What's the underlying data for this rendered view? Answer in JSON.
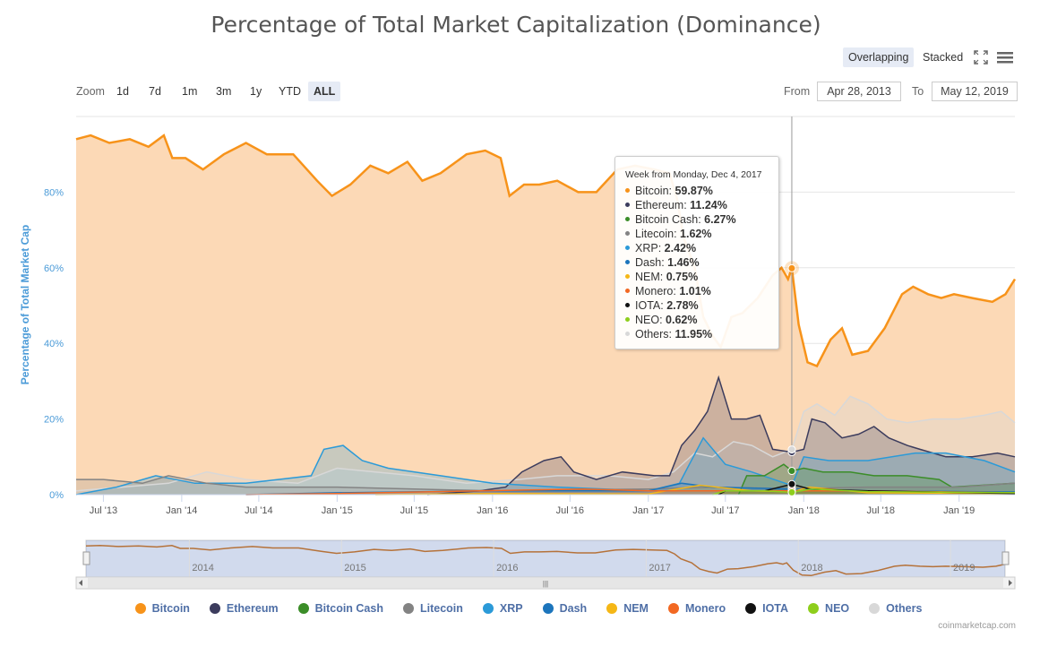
{
  "title": "Percentage of Total Market Capitalization (Dominance)",
  "toolbar": {
    "overlapping": "Overlapping",
    "stacked": "Stacked"
  },
  "zoom": {
    "label": "Zoom",
    "buttons": [
      "1d",
      "7d",
      "1m",
      "3m",
      "1y",
      "YTD",
      "ALL"
    ],
    "selected": "ALL"
  },
  "range": {
    "from_label": "From",
    "from": "Apr 28, 2013",
    "to_label": "To",
    "to": "May 12, 2019"
  },
  "tooltip": {
    "header": "Week from Monday, Dec 4, 2017",
    "rows": [
      {
        "name": "Bitcoin",
        "value": "59.87%",
        "color": "#f7931a"
      },
      {
        "name": "Ethereum",
        "value": "11.24%",
        "color": "#3c3c5d"
      },
      {
        "name": "Bitcoin Cash",
        "value": "6.27%",
        "color": "#3b8d28"
      },
      {
        "name": "Litecoin",
        "value": "1.62%",
        "color": "#838383"
      },
      {
        "name": "XRP",
        "value": "2.42%",
        "color": "#2b9ad8"
      },
      {
        "name": "Dash",
        "value": "1.46%",
        "color": "#1c75bc"
      },
      {
        "name": "NEM",
        "value": "0.75%",
        "color": "#f5b716"
      },
      {
        "name": "Monero",
        "value": "1.01%",
        "color": "#f26822"
      },
      {
        "name": "IOTA",
        "value": "2.78%",
        "color": "#111111"
      },
      {
        "name": "NEO",
        "value": "0.62%",
        "color": "#8ece1c"
      },
      {
        "name": "Others",
        "value": "11.95%",
        "color": "#d8d8d8"
      }
    ]
  },
  "navigator": {
    "years": [
      "2014",
      "2015",
      "2016",
      "2017",
      "2018",
      "2019"
    ]
  },
  "credit": "coinmarketcap.com",
  "chart_data": {
    "type": "area",
    "title": "Percentage of Total Market Capitalization (Dominance)",
    "ylabel": "Percentage of Total Market Cap",
    "ylim": [
      0,
      100
    ],
    "y_ticks": [
      "0%",
      "20%",
      "40%",
      "60%",
      "80%"
    ],
    "x_ticks": [
      "Jul '13",
      "Jan '14",
      "Jul '14",
      "Jan '15",
      "Jul '15",
      "Jan '16",
      "Jul '16",
      "Jan '17",
      "Jul '17",
      "Jan '18",
      "Jul '18",
      "Jan '19"
    ],
    "x_range": [
      "2013-04-28",
      "2019-05-12"
    ],
    "legend_position": "bottom",
    "series": [
      {
        "name": "Bitcoin",
        "color": "#f7931a",
        "fill": "#fcd9b6",
        "points": [
          [
            "2013-04-28",
            94
          ],
          [
            "2013-06-01",
            95
          ],
          [
            "2013-07-15",
            93
          ],
          [
            "2013-09-01",
            94
          ],
          [
            "2013-10-15",
            92
          ],
          [
            "2013-11-20",
            95
          ],
          [
            "2013-12-10",
            89
          ],
          [
            "2014-01-10",
            89
          ],
          [
            "2014-02-20",
            86
          ],
          [
            "2014-04-10",
            90
          ],
          [
            "2014-06-01",
            93
          ],
          [
            "2014-07-20",
            90
          ],
          [
            "2014-09-20",
            90
          ],
          [
            "2014-11-15",
            83
          ],
          [
            "2014-12-20",
            79
          ],
          [
            "2015-02-01",
            82
          ],
          [
            "2015-03-20",
            87
          ],
          [
            "2015-05-01",
            85
          ],
          [
            "2015-06-15",
            88
          ],
          [
            "2015-07-20",
            83
          ],
          [
            "2015-09-01",
            85
          ],
          [
            "2015-11-01",
            90
          ],
          [
            "2015-12-15",
            91
          ],
          [
            "2016-01-20",
            89
          ],
          [
            "2016-02-10",
            79
          ],
          [
            "2016-03-15",
            82
          ],
          [
            "2016-04-20",
            82
          ],
          [
            "2016-06-01",
            83
          ],
          [
            "2016-07-20",
            80
          ],
          [
            "2016-09-01",
            80
          ],
          [
            "2016-10-20",
            86
          ],
          [
            "2016-12-01",
            87
          ],
          [
            "2017-01-15",
            86
          ],
          [
            "2017-02-20",
            85
          ],
          [
            "2017-03-10",
            78
          ],
          [
            "2017-03-25",
            68
          ],
          [
            "2017-04-20",
            60
          ],
          [
            "2017-05-10",
            47
          ],
          [
            "2017-06-01",
            42
          ],
          [
            "2017-06-20",
            39
          ],
          [
            "2017-07-15",
            47
          ],
          [
            "2017-08-10",
            48
          ],
          [
            "2017-09-15",
            52
          ],
          [
            "2017-10-20",
            58
          ],
          [
            "2017-11-10",
            60
          ],
          [
            "2017-11-25",
            57
          ],
          [
            "2017-12-04",
            59.87
          ],
          [
            "2017-12-20",
            45
          ],
          [
            "2018-01-10",
            35
          ],
          [
            "2018-02-01",
            34
          ],
          [
            "2018-03-05",
            41
          ],
          [
            "2018-04-01",
            44
          ],
          [
            "2018-04-25",
            37
          ],
          [
            "2018-06-01",
            38
          ],
          [
            "2018-07-10",
            44
          ],
          [
            "2018-08-20",
            53
          ],
          [
            "2018-09-15",
            55
          ],
          [
            "2018-10-20",
            53
          ],
          [
            "2018-11-20",
            52
          ],
          [
            "2018-12-20",
            53
          ],
          [
            "2019-02-01",
            52
          ],
          [
            "2019-03-20",
            51
          ],
          [
            "2019-04-20",
            53
          ],
          [
            "2019-05-12",
            57
          ]
        ]
      },
      {
        "name": "Ethereum",
        "color": "#3c3c5d",
        "fill": "rgba(60,60,93,0.25)",
        "points": [
          [
            "2015-08-01",
            0
          ],
          [
            "2015-12-01",
            1
          ],
          [
            "2016-02-01",
            2
          ],
          [
            "2016-03-10",
            6
          ],
          [
            "2016-05-01",
            9
          ],
          [
            "2016-06-10",
            10
          ],
          [
            "2016-07-10",
            6
          ],
          [
            "2016-09-01",
            4
          ],
          [
            "2016-11-01",
            6
          ],
          [
            "2017-01-15",
            5
          ],
          [
            "2017-02-20",
            5
          ],
          [
            "2017-03-20",
            13
          ],
          [
            "2017-04-20",
            17
          ],
          [
            "2017-05-20",
            22
          ],
          [
            "2017-06-15",
            31
          ],
          [
            "2017-07-15",
            20
          ],
          [
            "2017-08-20",
            20
          ],
          [
            "2017-09-20",
            21
          ],
          [
            "2017-10-20",
            12
          ],
          [
            "2017-12-04",
            11.24
          ],
          [
            "2018-01-01",
            12
          ],
          [
            "2018-01-20",
            20
          ],
          [
            "2018-02-20",
            19
          ],
          [
            "2018-04-01",
            15
          ],
          [
            "2018-05-10",
            16
          ],
          [
            "2018-06-15",
            18
          ],
          [
            "2018-07-20",
            15
          ],
          [
            "2018-09-01",
            13
          ],
          [
            "2018-10-01",
            12
          ],
          [
            "2018-12-01",
            10
          ],
          [
            "2019-02-01",
            10
          ],
          [
            "2019-04-01",
            11
          ],
          [
            "2019-05-12",
            10
          ]
        ]
      },
      {
        "name": "Bitcoin Cash",
        "color": "#3b8d28",
        "fill": "rgba(59,141,40,0.25)",
        "points": [
          [
            "2017-08-01",
            0
          ],
          [
            "2017-08-20",
            5
          ],
          [
            "2017-10-01",
            5
          ],
          [
            "2017-11-15",
            8
          ],
          [
            "2017-12-04",
            6.27
          ],
          [
            "2018-01-01",
            7
          ],
          [
            "2018-02-15",
            6
          ],
          [
            "2018-04-20",
            6
          ],
          [
            "2018-06-15",
            5
          ],
          [
            "2018-09-01",
            5
          ],
          [
            "2018-11-15",
            4
          ],
          [
            "2018-12-15",
            2
          ],
          [
            "2019-05-12",
            3
          ]
        ]
      },
      {
        "name": "Litecoin",
        "color": "#838383",
        "fill": "rgba(131,131,131,0.2)",
        "points": [
          [
            "2013-04-28",
            4
          ],
          [
            "2013-07-01",
            4
          ],
          [
            "2013-10-01",
            3
          ],
          [
            "2013-12-01",
            5
          ],
          [
            "2014-03-01",
            3
          ],
          [
            "2014-06-01",
            2
          ],
          [
            "2015-01-01",
            2
          ],
          [
            "2015-07-01",
            1.5
          ],
          [
            "2016-01-01",
            1
          ],
          [
            "2017-01-01",
            1.5
          ],
          [
            "2017-06-01",
            2
          ],
          [
            "2017-12-04",
            1.62
          ],
          [
            "2018-06-01",
            2
          ],
          [
            "2019-01-01",
            2
          ],
          [
            "2019-05-12",
            3
          ]
        ]
      },
      {
        "name": "XRP",
        "color": "#2b9ad8",
        "fill": "rgba(43,154,216,0.25)",
        "points": [
          [
            "2013-04-28",
            0
          ],
          [
            "2013-08-01",
            2
          ],
          [
            "2013-11-01",
            5
          ],
          [
            "2014-02-01",
            3
          ],
          [
            "2014-06-01",
            3
          ],
          [
            "2014-11-01",
            5
          ],
          [
            "2014-12-01",
            12
          ],
          [
            "2015-01-15",
            13
          ],
          [
            "2015-03-01",
            9
          ],
          [
            "2015-05-01",
            7
          ],
          [
            "2015-09-01",
            5
          ],
          [
            "2016-01-01",
            3
          ],
          [
            "2016-06-01",
            2
          ],
          [
            "2017-01-01",
            1
          ],
          [
            "2017-03-15",
            3
          ],
          [
            "2017-05-10",
            15
          ],
          [
            "2017-07-01",
            8
          ],
          [
            "2017-09-01",
            6
          ],
          [
            "2017-12-04",
            2.42
          ],
          [
            "2018-01-01",
            10
          ],
          [
            "2018-03-01",
            9
          ],
          [
            "2018-06-01",
            9
          ],
          [
            "2018-09-20",
            11
          ],
          [
            "2018-12-01",
            11
          ],
          [
            "2019-03-01",
            9
          ],
          [
            "2019-05-12",
            6
          ]
        ]
      },
      {
        "name": "Dash",
        "color": "#1c75bc",
        "fill": "rgba(28,117,188,0.2)",
        "points": [
          [
            "2014-06-01",
            0
          ],
          [
            "2015-01-01",
            0.5
          ],
          [
            "2016-01-01",
            1
          ],
          [
            "2017-01-01",
            1
          ],
          [
            "2017-03-20",
            3
          ],
          [
            "2017-06-01",
            2
          ],
          [
            "2017-12-04",
            1.46
          ],
          [
            "2018-06-01",
            1
          ],
          [
            "2019-05-12",
            0.7
          ]
        ]
      },
      {
        "name": "NEM",
        "color": "#f5b716",
        "fill": "rgba(245,183,22,0.2)",
        "points": [
          [
            "2015-04-01",
            0
          ],
          [
            "2016-01-01",
            0.3
          ],
          [
            "2017-01-01",
            0.2
          ],
          [
            "2017-05-01",
            2.5
          ],
          [
            "2017-09-01",
            1
          ],
          [
            "2017-12-04",
            0.75
          ],
          [
            "2018-01-15",
            2
          ],
          [
            "2018-06-01",
            0.5
          ],
          [
            "2019-05-12",
            0.3
          ]
        ]
      },
      {
        "name": "Monero",
        "color": "#f26822",
        "fill": "rgba(242,104,34,0.2)",
        "points": [
          [
            "2014-06-01",
            0
          ],
          [
            "2015-01-01",
            0.3
          ],
          [
            "2016-08-01",
            1.5
          ],
          [
            "2017-01-01",
            1
          ],
          [
            "2017-06-01",
            1
          ],
          [
            "2017-12-04",
            1.01
          ],
          [
            "2018-06-01",
            1
          ],
          [
            "2019-05-12",
            0.5
          ]
        ]
      },
      {
        "name": "IOTA",
        "color": "#111111",
        "fill": "rgba(17,17,17,0.15)",
        "points": [
          [
            "2017-06-15",
            0
          ],
          [
            "2017-07-01",
            1
          ],
          [
            "2017-10-01",
            1
          ],
          [
            "2017-12-04",
            2.78
          ],
          [
            "2018-01-15",
            1.5
          ],
          [
            "2018-06-01",
            1
          ],
          [
            "2019-05-12",
            0.3
          ]
        ]
      },
      {
        "name": "NEO",
        "color": "#8ece1c",
        "fill": "rgba(142,206,28,0.2)",
        "points": [
          [
            "2017-06-01",
            0
          ],
          [
            "2017-07-01",
            1
          ],
          [
            "2017-10-01",
            1
          ],
          [
            "2017-12-04",
            0.62
          ],
          [
            "2018-01-20",
            1.5
          ],
          [
            "2018-06-01",
            0.8
          ],
          [
            "2019-05-12",
            0.5
          ]
        ]
      },
      {
        "name": "Others",
        "color": "#d8d8d8",
        "fill": "rgba(216,216,216,0.35)",
        "points": [
          [
            "2013-04-28",
            1
          ],
          [
            "2013-12-01",
            3
          ],
          [
            "2014-03-01",
            6
          ],
          [
            "2014-06-01",
            4
          ],
          [
            "2014-10-01",
            3
          ],
          [
            "2015-01-01",
            7
          ],
          [
            "2015-04-01",
            6
          ],
          [
            "2015-07-01",
            5
          ],
          [
            "2015-11-01",
            3
          ],
          [
            "2016-03-01",
            4
          ],
          [
            "2016-06-01",
            5
          ],
          [
            "2016-10-01",
            5
          ],
          [
            "2017-01-01",
            4
          ],
          [
            "2017-03-01",
            6
          ],
          [
            "2017-04-20",
            11
          ],
          [
            "2017-06-01",
            10
          ],
          [
            "2017-07-20",
            14
          ],
          [
            "2017-09-01",
            13
          ],
          [
            "2017-10-20",
            10
          ],
          [
            "2017-12-04",
            11.95
          ],
          [
            "2018-01-01",
            22
          ],
          [
            "2018-02-01",
            24
          ],
          [
            "2018-03-15",
            21
          ],
          [
            "2018-04-20",
            26
          ],
          [
            "2018-06-01",
            24
          ],
          [
            "2018-07-15",
            20
          ],
          [
            "2018-09-01",
            19
          ],
          [
            "2018-11-01",
            20
          ],
          [
            "2019-01-01",
            20
          ],
          [
            "2019-03-01",
            21
          ],
          [
            "2019-04-10",
            22
          ],
          [
            "2019-05-12",
            19
          ]
        ]
      }
    ]
  }
}
